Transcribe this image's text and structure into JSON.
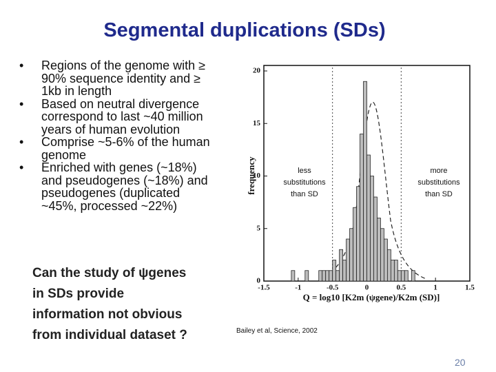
{
  "slide": {
    "title": "Segmental duplications (SDs)",
    "bullets": [
      "Regions of the genome with ≥ 90% sequence identity and ≥ 1kb in length",
      "Based on neutral divergence correspond to last ~40 million years  of human evolution",
      "Comprise ~5-6% of the human genome",
      "Enriched with genes (~18%) and pseudogenes (~18%) and pseudogenes (duplicated ~45%, processed ~22%)"
    ],
    "question": [
      "Can the study of ψgenes",
      "in SDs provide",
      "information not obvious",
      "from individual dataset ?"
    ],
    "citation": "Bailey et al, Science, 2002",
    "page_number": "20"
  },
  "chart_data": {
    "type": "histogram",
    "x_label": "Q = log10 [K2m (ψgene)/K2m (SD)]",
    "y_label": "frequency",
    "annotations": [
      {
        "lines": [
          "less",
          "substitutions",
          "than SD"
        ]
      },
      {
        "lines": [
          "more",
          "substitutions",
          "than SD"
        ]
      }
    ],
    "bins": [
      -1.1,
      -1.05,
      -1.0,
      -0.95,
      -0.9,
      -0.85,
      -0.8,
      -0.75,
      -0.7,
      -0.65,
      -0.6,
      -0.55,
      -0.5,
      -0.45,
      -0.4,
      -0.35,
      -0.3,
      -0.25,
      -0.2,
      -0.15,
      -0.1,
      -0.05,
      0,
      0.05,
      0.1,
      0.15,
      0.2,
      0.25,
      0.3,
      0.35,
      0.4,
      0.45,
      0.5,
      0.55,
      0.6,
      0.65,
      0.7
    ],
    "values": [
      1,
      0,
      0,
      0,
      1,
      0,
      0,
      0,
      1,
      1,
      1,
      1,
      2,
      1,
      3,
      2,
      4,
      5,
      7,
      9,
      14,
      19,
      12,
      10,
      8,
      6,
      5,
      4,
      3,
      2,
      2,
      1,
      1,
      1,
      0,
      1
    ],
    "color": "#bdbdbd",
    "vlines": [
      -0.5,
      0.5
    ],
    "xlim": [
      -1.5,
      1.5
    ],
    "ylim": [
      0,
      20
    ],
    "xticks": [
      -1.5,
      -1,
      -0.5,
      0,
      0.5,
      1,
      1.5
    ],
    "yticks": [
      0,
      5,
      10,
      15,
      20
    ]
  }
}
